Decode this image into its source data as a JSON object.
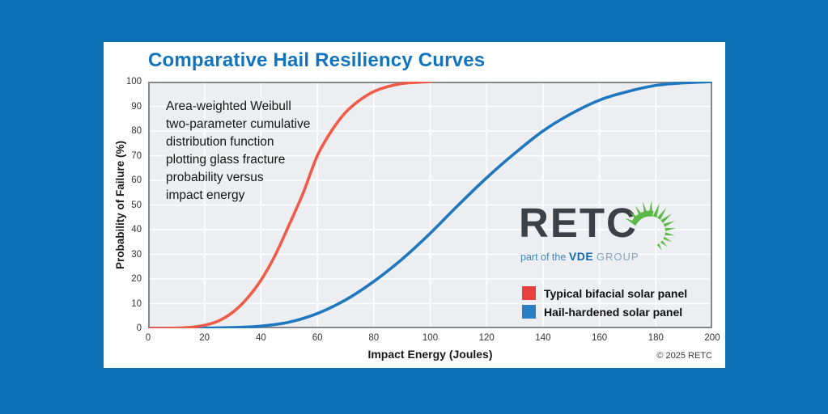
{
  "page": {
    "background_color": "#0c70b5"
  },
  "card": {
    "background_color": "#ffffff"
  },
  "chart_data": {
    "type": "line",
    "title": "Comparative Hail Resiliency Curves",
    "title_color": "#1173be",
    "xlabel": "Impact Energy (Joules)",
    "ylabel": "Probability of Failure (%)",
    "xlim": [
      0,
      200
    ],
    "ylim": [
      0,
      100
    ],
    "x_ticks": [
      0,
      20,
      40,
      60,
      80,
      100,
      120,
      140,
      160,
      180,
      200
    ],
    "y_ticks": [
      0,
      10,
      20,
      30,
      40,
      50,
      60,
      70,
      80,
      90,
      100
    ],
    "grid": true,
    "plot_background": "#eceef1",
    "grid_color": "#ffffff",
    "border_color": "#85888c",
    "legend_position": "inside-bottom-right",
    "series": [
      {
        "name": "Typical bifacial solar panel",
        "line_color": "#f05b49",
        "swatch_color": "#e8403d",
        "points": [
          [
            0,
            0
          ],
          [
            5,
            0
          ],
          [
            10,
            0.1
          ],
          [
            15,
            0.4
          ],
          [
            20,
            1.2
          ],
          [
            25,
            3
          ],
          [
            30,
            6.5
          ],
          [
            35,
            12
          ],
          [
            40,
            19.5
          ],
          [
            45,
            29.5
          ],
          [
            50,
            42
          ],
          [
            55,
            55
          ],
          [
            60,
            70
          ],
          [
            65,
            80
          ],
          [
            70,
            87.5
          ],
          [
            75,
            92.5
          ],
          [
            80,
            96
          ],
          [
            85,
            98
          ],
          [
            90,
            99.2
          ],
          [
            95,
            99.7
          ],
          [
            100,
            100
          ]
        ]
      },
      {
        "name": "Hail-hardened solar panel",
        "line_color": "#1f78bf",
        "swatch_color": "#2b7ec2",
        "points": [
          [
            0,
            0
          ],
          [
            10,
            0
          ],
          [
            20,
            0.1
          ],
          [
            30,
            0.3
          ],
          [
            40,
            0.9
          ],
          [
            50,
            2.5
          ],
          [
            60,
            6
          ],
          [
            70,
            11.5
          ],
          [
            80,
            19
          ],
          [
            90,
            28
          ],
          [
            100,
            38.5
          ],
          [
            110,
            50
          ],
          [
            120,
            61
          ],
          [
            130,
            71
          ],
          [
            140,
            80
          ],
          [
            150,
            87
          ],
          [
            160,
            92.5
          ],
          [
            170,
            96
          ],
          [
            180,
            98.5
          ],
          [
            190,
            99.5
          ],
          [
            200,
            100
          ]
        ]
      }
    ]
  },
  "annotation": {
    "lines": [
      "Area-weighted Weibull",
      "two-parameter cumulative",
      "distribution function",
      "plotting glass fracture",
      "probability versus",
      "impact energy"
    ]
  },
  "logo": {
    "name": "RETC",
    "tagline_prefix": "part of the",
    "tagline_brand": "VDE",
    "tagline_suffix": "GROUP",
    "text_color": "#3b4147",
    "sunburst_color": "#5cb948"
  },
  "footer": {
    "copyright": "© 2025 RETC"
  }
}
